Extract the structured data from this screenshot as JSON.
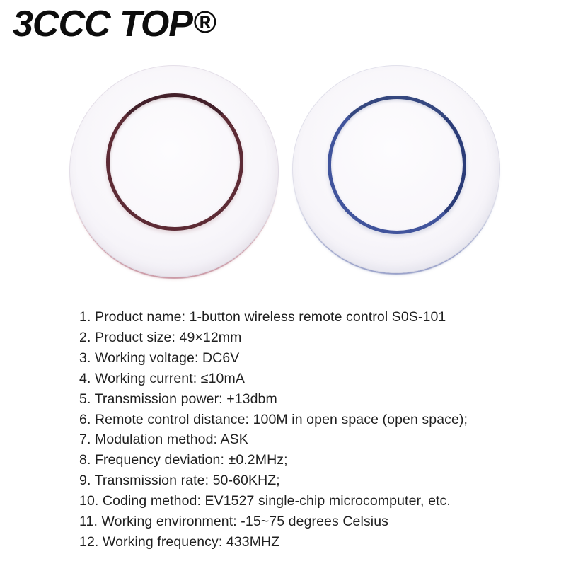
{
  "brand": {
    "name": "3CCC TOP",
    "registered_mark": "®"
  },
  "photos": {
    "left_button_ring_color": "#5d2b35",
    "right_button_ring_color": "#41549c",
    "body_color": "#f7f5fa"
  },
  "theme": {
    "page-bg": "#ffffff",
    "text-color": "#1f1f1f",
    "logo-color": "#0d0d0d",
    "red-ring": "#5d2b35",
    "red-rim": "#cb9aa6",
    "blue-ring": "#41549c",
    "blue-rim": "#99a1c9"
  },
  "specs": {
    "items": [
      "1. Product name: 1-button wireless remote control S0S-101",
      "2. Product size: 49×12mm",
      "3. Working voltage: DC6V",
      "4. Working current: ≤10mA",
      "5. Transmission power: +13dbm",
      "6. Remote control distance: 100M in open space (open space);",
      "7. Modulation method: ASK",
      "8. Frequency deviation: ±0.2MHz;",
      "9. Transmission rate: 50-60KHZ;",
      "10. Coding method: EV1527 single-chip microcomputer, etc.",
      "11. Working environment: -15~75 degrees Celsius",
      "12. Working frequency: 433MHZ"
    ]
  }
}
